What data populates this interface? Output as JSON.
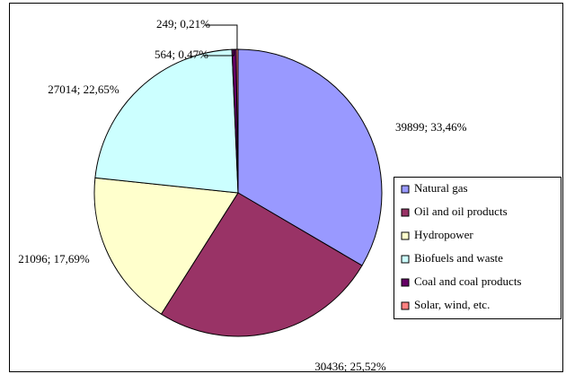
{
  "chart_data": {
    "type": "pie",
    "categories": [
      "Natural gas",
      "Oil and oil products",
      "Hydropower",
      "Biofuels and waste",
      "Coal and coal products",
      "Solar, wind, etc."
    ],
    "values": [
      39899,
      30436,
      21096,
      27014,
      564,
      249
    ],
    "value_labels": [
      "39899; 33,46%",
      "30436; 25,52%",
      "21096; 17,69%",
      "27014; 22,65%",
      "564; 0,47%",
      "249; 0,21%"
    ],
    "colors": [
      "#9999ff",
      "#993366",
      "#ffffcc",
      "#ccffff",
      "#660066",
      "#ff8080"
    ],
    "legend": "right"
  }
}
